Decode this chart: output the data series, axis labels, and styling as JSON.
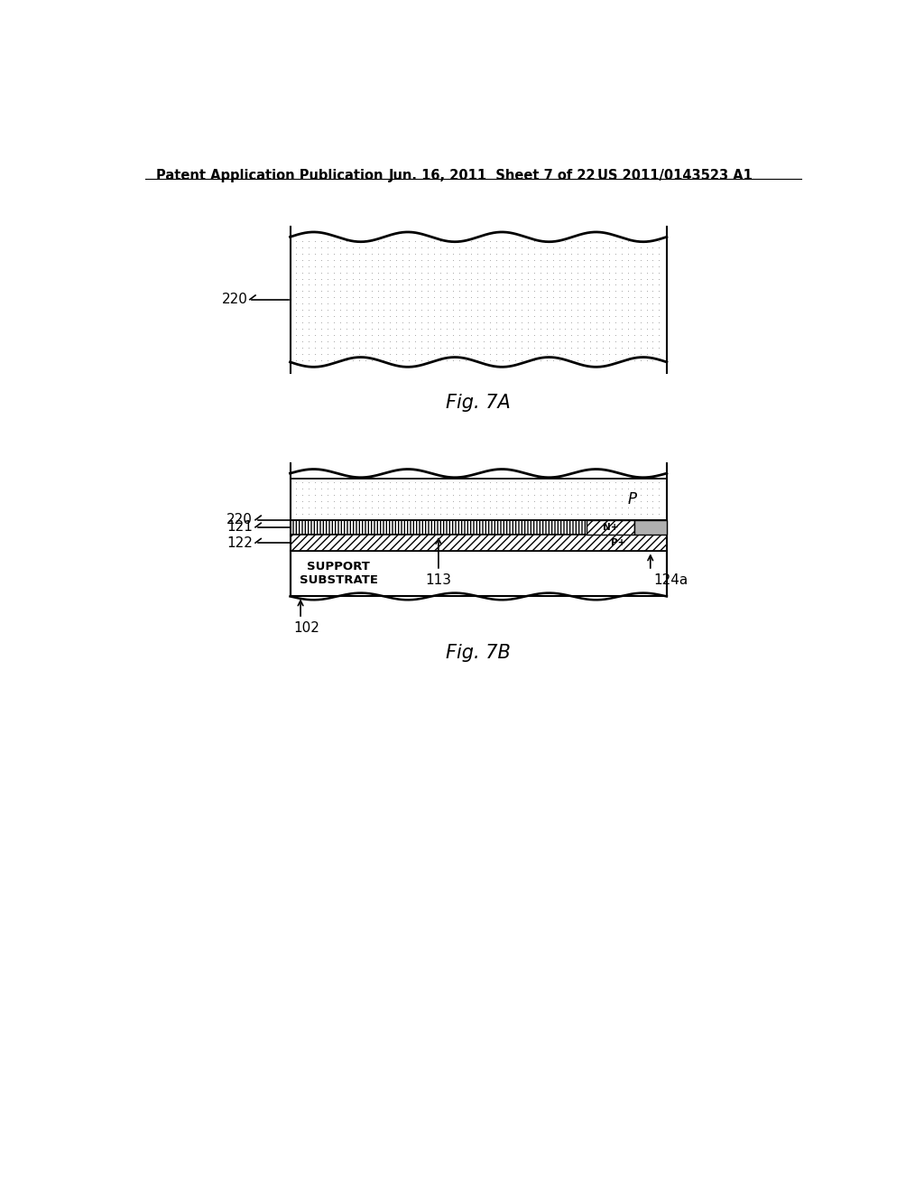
{
  "header_left": "Patent Application Publication",
  "header_center": "Jun. 16, 2011  Sheet 7 of 22",
  "header_right": "US 2011/0143523 A1",
  "fig7a_label": "Fig. 7A",
  "fig7b_label": "Fig. 7B",
  "label_220a": "220",
  "label_220b": "220",
  "label_121": "121",
  "label_122": "122",
  "label_113": "113",
  "label_124a": "124a",
  "label_102": "102",
  "label_P": "P",
  "label_Nplus": "N+",
  "label_Pplus": "P+",
  "label_support": "SUPPORT\nSUBSTRATE",
  "bg_color": "#ffffff"
}
